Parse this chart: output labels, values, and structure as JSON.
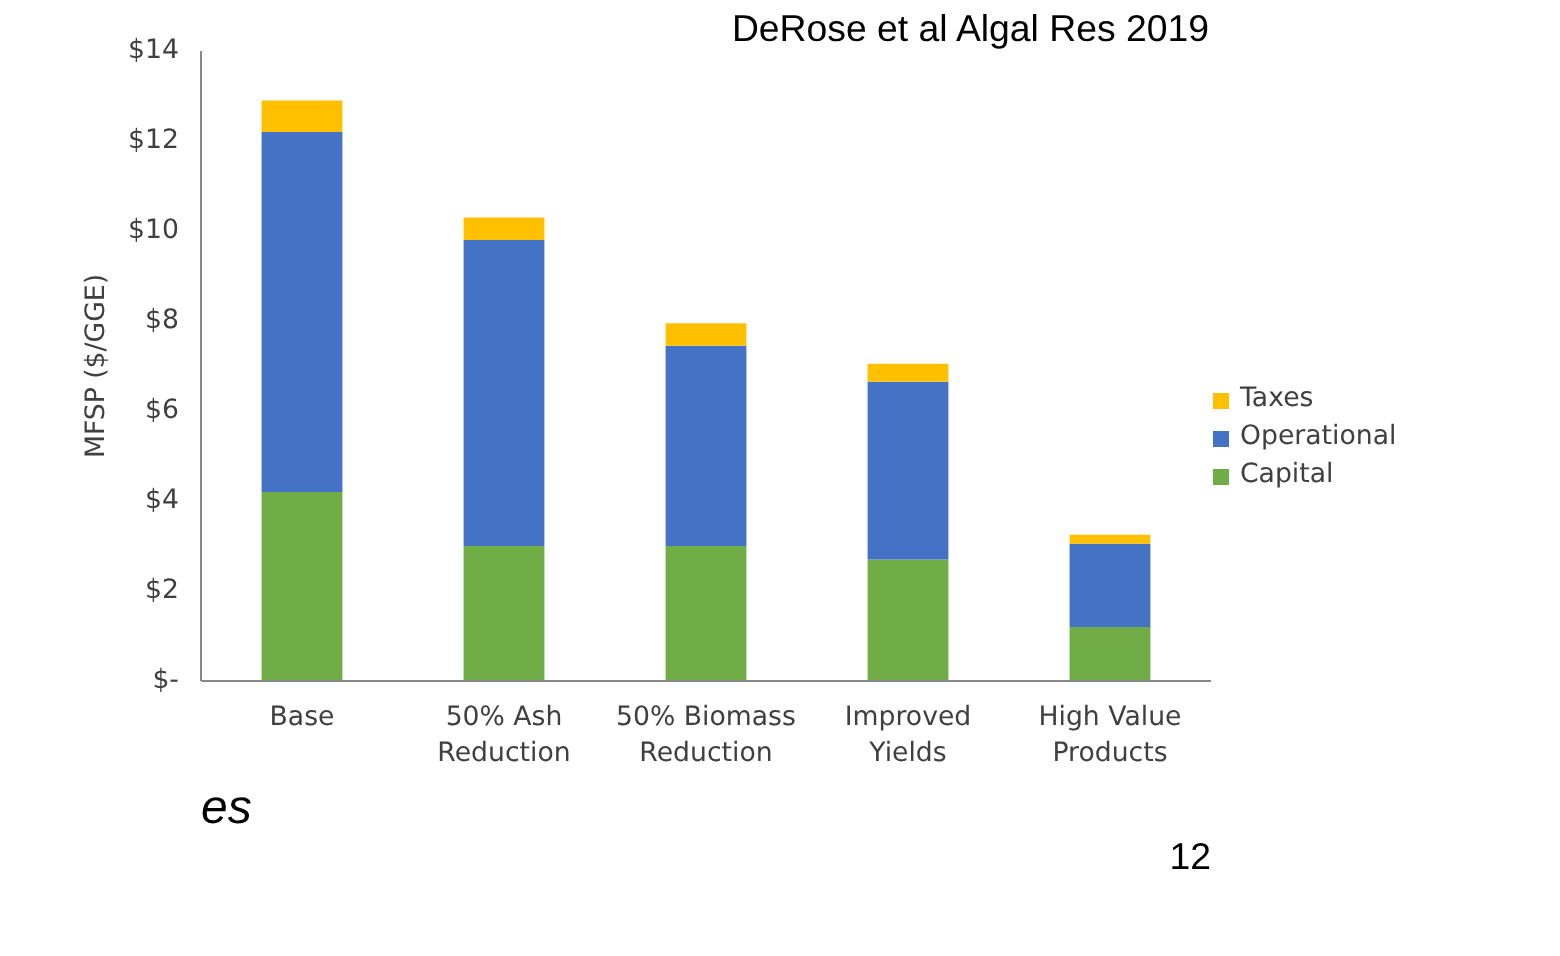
{
  "chart_data": {
    "type": "bar",
    "stacked": true,
    "categories": [
      "Base",
      "50% Ash\nReduction",
      "50% Biomass\nReduction",
      "Improved\nYields",
      "High Value\nProducts"
    ],
    "series": [
      {
        "name": "Capital",
        "color": "#70ad47",
        "values": [
          4.2,
          3.0,
          3.0,
          2.7,
          1.2
        ]
      },
      {
        "name": "Operational",
        "color": "#4472c4",
        "values": [
          8.0,
          6.8,
          4.45,
          3.95,
          1.85
        ]
      },
      {
        "name": "Taxes",
        "color": "#ffc000",
        "values": [
          0.7,
          0.5,
          0.5,
          0.4,
          0.2
        ]
      }
    ],
    "ylabel": "MFSP ($/GGE)",
    "ylim": [
      0,
      14
    ],
    "yticks": [
      {
        "value": 0,
        "label": "$-"
      },
      {
        "value": 2,
        "label": "$2"
      },
      {
        "value": 4,
        "label": "$4"
      },
      {
        "value": 6,
        "label": "$6"
      },
      {
        "value": 8,
        "label": "$8"
      },
      {
        "value": 10,
        "label": "$10"
      },
      {
        "value": 12,
        "label": "$12"
      },
      {
        "value": 14,
        "label": "$14"
      }
    ],
    "grid": false,
    "legend": "right",
    "annotations": [
      "DeRose et al Algal Res 2019",
      "es",
      "12"
    ]
  }
}
